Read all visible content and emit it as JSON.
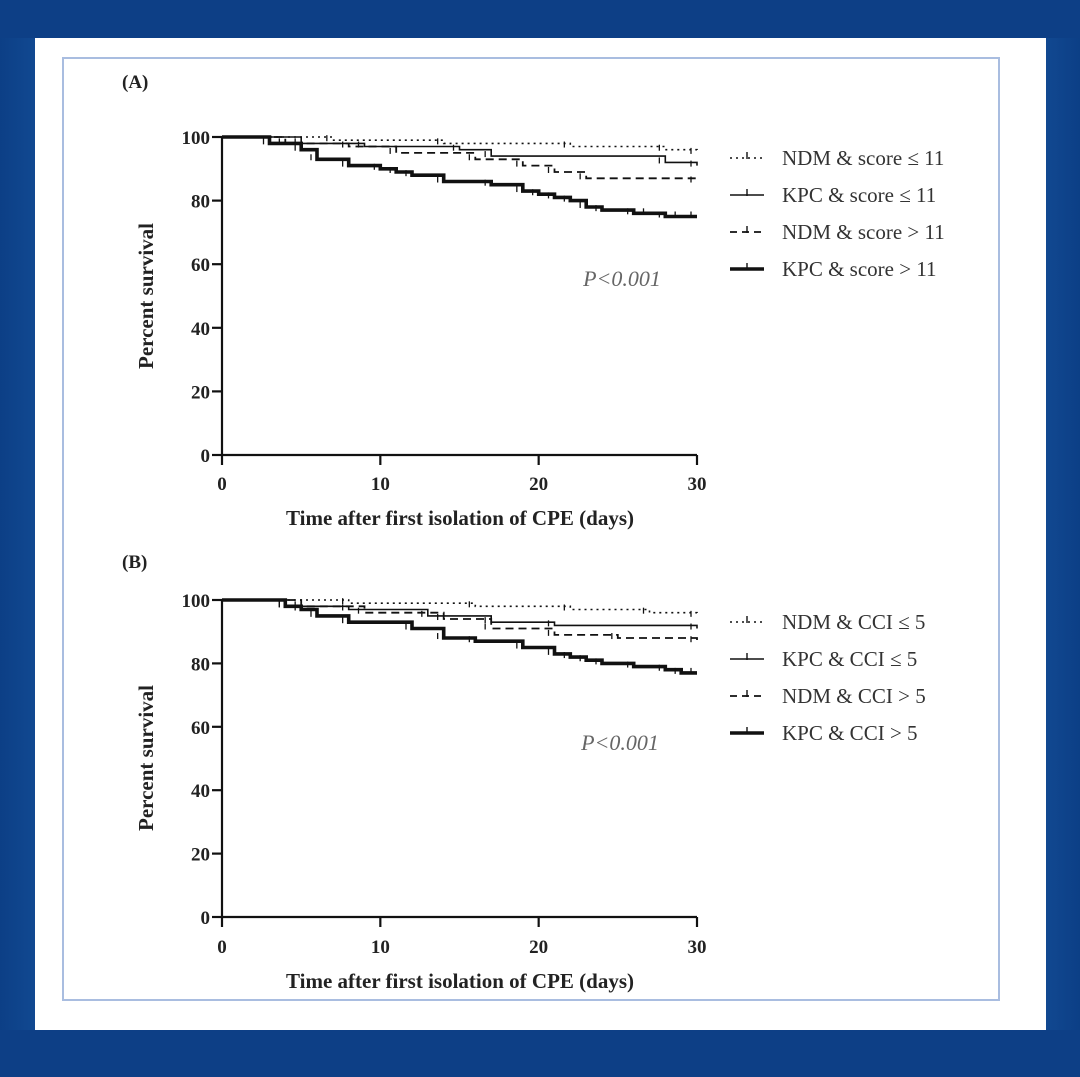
{
  "page": {
    "background_colors": {
      "outer_band": "#0d3f86",
      "card": "#ffffff",
      "frame_border": "#a9bde0"
    }
  },
  "chart_data": [
    {
      "type": "line",
      "panel_label": "(A)",
      "xlabel": "Time after first isolation of CPE (days)",
      "ylabel": "Percent survival",
      "xlim": [
        0,
        30
      ],
      "ylim": [
        0,
        100
      ],
      "x_ticks": [
        "0",
        "10",
        "20",
        "30"
      ],
      "y_ticks": [
        "0",
        "20",
        "40",
        "60",
        "80",
        "100"
      ],
      "annotation": "P<0.001",
      "legend_position": "right",
      "series": [
        {
          "name": "NDM & score ≤  11",
          "style": "dotted",
          "x": [
            0,
            7,
            14,
            22,
            28,
            30
          ],
          "y": [
            100,
            99,
            98,
            97,
            96,
            95
          ]
        },
        {
          "name": "KPC & score ≤  11",
          "style": "solid-thin",
          "x": [
            0,
            5,
            9,
            15,
            17,
            28,
            30
          ],
          "y": [
            100,
            98,
            97,
            96,
            94,
            92,
            91
          ]
        },
        {
          "name": "NDM & score > 11",
          "style": "dashed",
          "x": [
            0,
            4,
            8,
            11,
            16,
            19,
            21,
            23,
            30
          ],
          "y": [
            100,
            98,
            97,
            95,
            93,
            91,
            89,
            87,
            86
          ]
        },
        {
          "name": "KPC & score > 11",
          "style": "solid-thick",
          "x": [
            0,
            3,
            5,
            6,
            8,
            10,
            11,
            12,
            14,
            17,
            19,
            20,
            21,
            22,
            23,
            24,
            26,
            27,
            28,
            29,
            30
          ],
          "y": [
            100,
            98,
            96,
            93,
            91,
            90,
            89,
            88,
            86,
            85,
            83,
            82,
            81,
            80,
            78,
            77,
            76,
            76,
            75,
            75,
            75
          ]
        }
      ]
    },
    {
      "type": "line",
      "panel_label": "(B)",
      "xlabel": "Time after first isolation of CPE (days)",
      "ylabel": "Percent survival",
      "xlim": [
        0,
        30
      ],
      "ylim": [
        0,
        100
      ],
      "x_ticks": [
        "0",
        "10",
        "20",
        "30"
      ],
      "y_ticks": [
        "0",
        "20",
        "40",
        "60",
        "80",
        "100"
      ],
      "annotation": "P<0.001",
      "legend_position": "right",
      "series": [
        {
          "name": "NDM & CCI ≤ 5",
          "style": "dotted",
          "x": [
            0,
            8,
            16,
            22,
            27,
            30
          ],
          "y": [
            100,
            99,
            98,
            97,
            96,
            95
          ]
        },
        {
          "name": "KPC & CCI ≤ 5",
          "style": "solid-thin",
          "x": [
            0,
            4,
            8,
            13,
            17,
            21,
            30
          ],
          "y": [
            100,
            98,
            97,
            95,
            93,
            92,
            91
          ]
        },
        {
          "name": "NDM & CCI > 5",
          "style": "dashed",
          "x": [
            0,
            5,
            9,
            14,
            17,
            21,
            25,
            30
          ],
          "y": [
            100,
            98,
            96,
            94,
            91,
            89,
            88,
            87
          ]
        },
        {
          "name": "KPC & CCI > 5",
          "style": "solid-thick",
          "x": [
            0,
            4,
            5,
            6,
            8,
            12,
            14,
            16,
            19,
            21,
            22,
            23,
            24,
            26,
            28,
            29,
            30
          ],
          "y": [
            100,
            98,
            97,
            95,
            93,
            91,
            88,
            87,
            85,
            83,
            82,
            81,
            80,
            79,
            78,
            77,
            77
          ]
        }
      ]
    }
  ]
}
